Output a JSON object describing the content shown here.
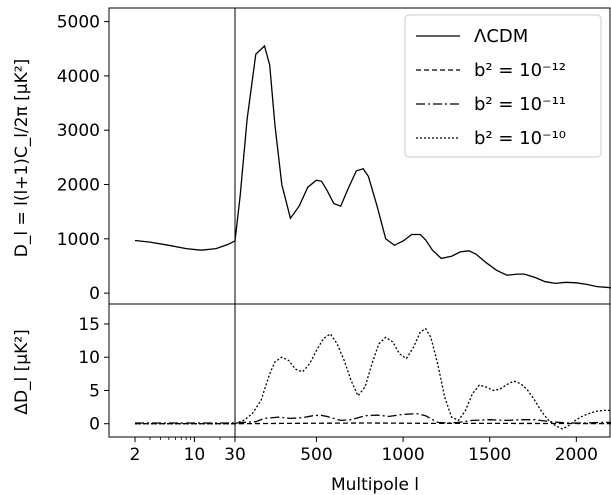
{
  "chart_data": [
    {
      "panel": "top",
      "type": "line",
      "ylabel": "D_l = l(l+1)C_l/2π [μK²]",
      "ylim": [
        -200,
        5250
      ],
      "yticks": [
        0,
        1000,
        2000,
        3000,
        4000,
        5000
      ],
      "vline_at_l": 30,
      "legend": {
        "placement": "top-right",
        "entries": [
          {
            "label": "ΛCDM",
            "style": "solid"
          },
          {
            "label": "b² = 10⁻¹²",
            "style": "dashed"
          },
          {
            "label": "b² = 10⁻¹¹",
            "style": "dashdot"
          },
          {
            "label": "b² = 10⁻¹⁰",
            "style": "dotted"
          }
        ]
      },
      "series": [
        {
          "name": "ΛCDM",
          "style": "solid",
          "x": [
            2,
            3,
            5,
            8,
            12,
            18,
            25,
            30,
            60,
            100,
            150,
            200,
            230,
            260,
            300,
            350,
            400,
            450,
            500,
            530,
            560,
            600,
            640,
            680,
            730,
            770,
            800,
            850,
            900,
            950,
            1000,
            1050,
            1100,
            1130,
            1170,
            1220,
            1280,
            1330,
            1380,
            1420,
            1480,
            1540,
            1600,
            1660,
            1700,
            1760,
            1820,
            1880,
            1940,
            2000,
            2060,
            2120,
            2200
          ],
          "y": [
            970,
            940,
            880,
            820,
            790,
            820,
            900,
            960,
            1800,
            3200,
            4400,
            4550,
            4200,
            3100,
            2000,
            1380,
            1600,
            1950,
            2080,
            2060,
            1900,
            1650,
            1600,
            1900,
            2250,
            2290,
            2150,
            1600,
            1000,
            880,
            960,
            1080,
            1080,
            980,
            790,
            640,
            680,
            760,
            780,
            720,
            560,
            420,
            330,
            350,
            350,
            290,
            210,
            180,
            200,
            190,
            160,
            120,
            100
          ]
        }
      ]
    },
    {
      "panel": "bottom",
      "type": "line",
      "xlabel": "Multipole l",
      "ylabel": "ΔD_l  [μK²]",
      "ylim": [
        -2,
        18
      ],
      "yticks": [
        0,
        5,
        10,
        15
      ],
      "xtick_labels": [
        "2",
        "10",
        "30",
        "500",
        "1000",
        "1500",
        "2000"
      ],
      "xticks": [
        2,
        10,
        30,
        500,
        1000,
        1500,
        2000
      ],
      "xscale": "log for l ≤ 30, linear for l ≥ 30",
      "xlim": [
        2,
        2200
      ],
      "vline_at_l": 30,
      "series": [
        {
          "name": "b² = 10⁻¹²",
          "style": "dashed",
          "x": [
            2,
            30,
            300,
            800,
            1200,
            1600,
            2200
          ],
          "y": [
            0,
            0,
            0.05,
            0.1,
            0.05,
            0.04,
            0.02
          ]
        },
        {
          "name": "b² = 10⁻¹¹",
          "style": "dashdot",
          "x": [
            2,
            30,
            150,
            200,
            280,
            350,
            420,
            480,
            520,
            560,
            640,
            700,
            780,
            850,
            920,
            1000,
            1080,
            1130,
            1200,
            1260,
            1320,
            1400,
            1500,
            1600,
            1680,
            1760,
            1850,
            1950,
            2050,
            2150,
            2200
          ],
          "y": [
            0.1,
            0.1,
            0.3,
            0.8,
            1.0,
            0.8,
            0.9,
            1.2,
            1.3,
            1.1,
            0.5,
            0.6,
            1.2,
            1.3,
            1.1,
            1.4,
            1.5,
            1.2,
            0.2,
            0.1,
            0.2,
            0.5,
            0.6,
            0.5,
            0.6,
            0.6,
            0.3,
            0.1,
            0.1,
            0.2,
            0.2
          ]
        },
        {
          "name": "b² = 10⁻¹⁰",
          "style": "dotted",
          "x": [
            2,
            30,
            80,
            130,
            180,
            230,
            260,
            300,
            340,
            380,
            420,
            460,
            500,
            540,
            580,
            620,
            660,
            700,
            740,
            780,
            820,
            860,
            900,
            940,
            980,
            1020,
            1060,
            1100,
            1130,
            1160,
            1200,
            1240,
            1280,
            1320,
            1360,
            1400,
            1440,
            1480,
            1520,
            1560,
            1600,
            1640,
            1680,
            1720,
            1760,
            1800,
            1840,
            1880,
            1920,
            1960,
            2000,
            2040,
            2080,
            2120,
            2160,
            2200
          ],
          "y": [
            0,
            0,
            0.5,
            1.5,
            3.5,
            7.5,
            9.3,
            10.0,
            9.5,
            8.2,
            7.8,
            9.0,
            11.0,
            12.8,
            13.5,
            12.0,
            9.5,
            6.5,
            4.2,
            5.5,
            9.0,
            12.0,
            13.0,
            12.3,
            10.5,
            9.8,
            11.5,
            13.8,
            14.3,
            13.0,
            9.0,
            4.0,
            1.0,
            0.5,
            2.0,
            4.5,
            5.8,
            5.5,
            5.0,
            5.2,
            5.9,
            6.4,
            6.0,
            5.0,
            3.5,
            1.8,
            0.5,
            -0.3,
            -0.8,
            -0.2,
            0.6,
            1.2,
            1.6,
            1.9,
            2.0,
            2.0
          ]
        }
      ]
    }
  ]
}
